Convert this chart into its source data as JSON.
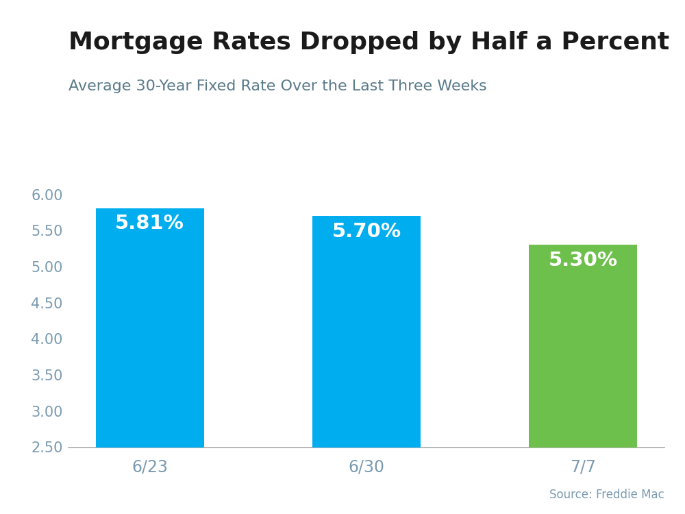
{
  "title": "Mortgage Rates Dropped by Half a Percent",
  "subtitle": "Average 30-Year Fixed Rate Over the Last Three Weeks",
  "categories": [
    "6/23",
    "6/30",
    "7/7"
  ],
  "values": [
    5.81,
    5.7,
    5.3
  ],
  "bar_colors": [
    "#00AEEF",
    "#00AEEF",
    "#6DC04B"
  ],
  "labels": [
    "5.81%",
    "5.70%",
    "5.30%"
  ],
  "ylim": [
    2.5,
    6.2
  ],
  "yticks": [
    2.5,
    3.0,
    3.5,
    4.0,
    4.5,
    5.0,
    5.5,
    6.0
  ],
  "source_text": "Source: Freddie Mac",
  "title_fontsize": 26,
  "subtitle_fontsize": 16,
  "label_fontsize": 21,
  "tick_fontsize": 15,
  "source_fontsize": 12,
  "title_color": "#1a1a1a",
  "subtitle_color": "#5a7a8a",
  "tick_color": "#7a9ab0",
  "source_color": "#7a9ab0",
  "bar_label_color": "#ffffff",
  "top_stripe_color": "#00AEEF",
  "background_color": "#ffffff",
  "bar_width": 0.5,
  "baseline": 2.5
}
